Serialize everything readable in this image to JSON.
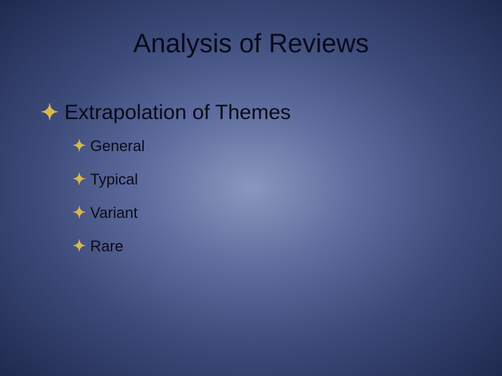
{
  "slide": {
    "title": "Analysis of Reviews",
    "bullets": {
      "level1": {
        "text": "Extrapolation of Themes"
      },
      "level2": [
        {
          "text": "General"
        },
        {
          "text": "Typical"
        },
        {
          "text": "Variant"
        },
        {
          "text": "Rare"
        }
      ]
    },
    "colors": {
      "background_center": "#8a97bd",
      "background_edge": "#1f2a4f",
      "text_color": "#0a0a1a",
      "bullet_color": "#d9b84a"
    },
    "typography": {
      "title_fontsize": 38,
      "level1_fontsize": 30,
      "level2_fontsize": 22,
      "font_family": "Arial"
    },
    "bullet_glyph": "✦"
  }
}
